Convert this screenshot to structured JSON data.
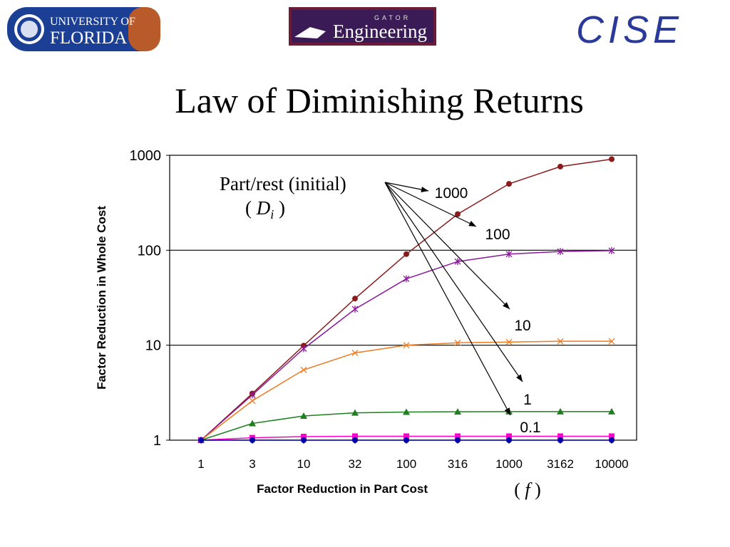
{
  "header": {
    "uf_logo_line1": "UNIVERSITY OF",
    "uf_logo_line2": "FLORIDA",
    "gator_logo_small": "GATOR",
    "gator_logo_main": "Engineering",
    "cise_logo": "CISE"
  },
  "title": "Law of Diminishing Returns",
  "annotation": {
    "line1": "Part/rest (initial)",
    "symbol": "D",
    "subscript": "i"
  },
  "chart_data": {
    "type": "line",
    "ylog": true,
    "ylim": [
      1,
      1000
    ],
    "yticks": [
      "1",
      "10",
      "100",
      "1000"
    ],
    "categories": [
      "1",
      "3",
      "10",
      "32",
      "100",
      "316",
      "1000",
      "3162",
      "10000"
    ],
    "xlabel": "Factor Reduction in Part Cost",
    "xlabel_symbol": "f",
    "ylabel": "Factor Reduction in Whole Cost",
    "grid": "horizontal",
    "series": [
      {
        "name": "1000",
        "color": "#8b1a1a",
        "marker": "circle",
        "values": [
          1,
          3.1,
          9.9,
          31,
          91,
          240,
          500,
          760,
          910
        ]
      },
      {
        "name": "100",
        "color": "#8b1a9b",
        "marker": "star",
        "values": [
          1,
          3,
          9.2,
          24,
          50,
          76,
          91,
          97,
          99
        ]
      },
      {
        "name": "10",
        "color": "#f07a1e",
        "marker": "x",
        "values": [
          1,
          2.6,
          5.5,
          8.3,
          10,
          10.6,
          10.8,
          11,
          11
        ]
      },
      {
        "name": "1",
        "color": "#1e7f1e",
        "marker": "triangle",
        "values": [
          1,
          1.5,
          1.8,
          1.94,
          1.98,
          1.99,
          2,
          2,
          2
        ]
      },
      {
        "name": "0.1",
        "color": "#ff00cc",
        "marker": "square",
        "values": [
          1,
          1.06,
          1.09,
          1.1,
          1.1,
          1.1,
          1.1,
          1.1,
          1.1
        ]
      },
      {
        "name": "",
        "color": "#0000aa",
        "marker": "circle",
        "values": [
          1,
          1,
          1,
          1,
          1,
          1,
          1,
          1,
          1
        ]
      }
    ]
  }
}
